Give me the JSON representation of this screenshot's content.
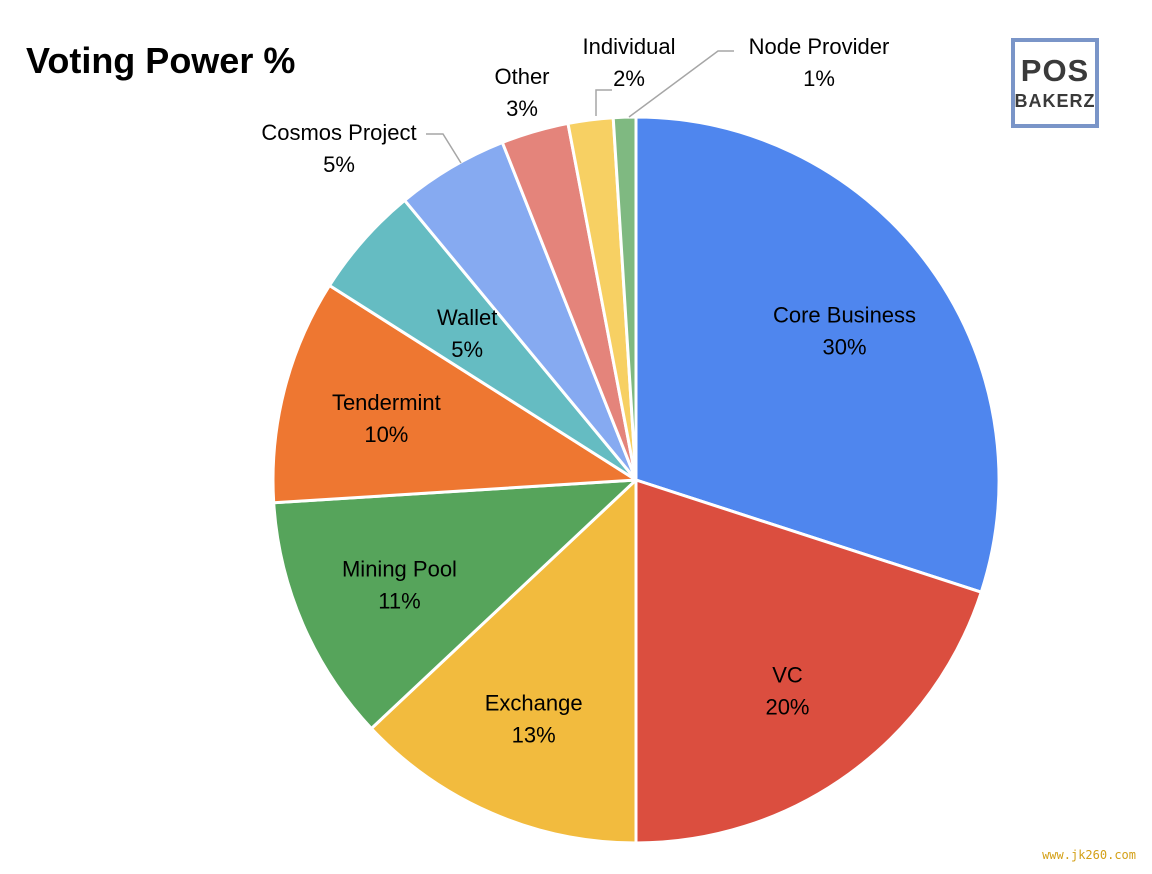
{
  "chart_data": {
    "type": "pie",
    "title": "Voting Power %",
    "slices": [
      {
        "name": "Core Business",
        "value": 30,
        "label": "30%",
        "color": "#4f86ee"
      },
      {
        "name": "VC",
        "value": 20,
        "label": "20%",
        "color": "#db4e3f"
      },
      {
        "name": "Exchange",
        "value": 13,
        "label": "13%",
        "color": "#f2bb3e"
      },
      {
        "name": "Mining Pool",
        "value": 11,
        "label": "11%",
        "color": "#56a45b"
      },
      {
        "name": "Tendermint",
        "value": 10,
        "label": "10%",
        "color": "#ee7731"
      },
      {
        "name": "Wallet",
        "value": 5,
        "label": "5%",
        "color": "#65bcc2"
      },
      {
        "name": "Cosmos Project",
        "value": 5,
        "label": "5%",
        "color": "#86aaf1"
      },
      {
        "name": "Other",
        "value": 3,
        "label": "3%",
        "color": "#e4847b"
      },
      {
        "name": "Individual",
        "value": 2,
        "label": "2%",
        "color": "#f7d063"
      },
      {
        "name": "Node Provider",
        "value": 1,
        "label": "1%",
        "color": "#7fb981"
      }
    ]
  },
  "logo": {
    "line1": "POS",
    "line2": "BAKERZ",
    "border_color": "#7a95c8"
  },
  "watermark": "www.jk260.com"
}
